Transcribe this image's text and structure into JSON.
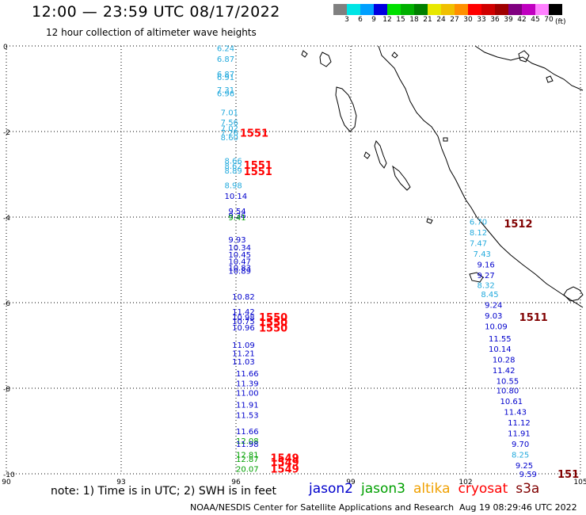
{
  "header": {
    "title": "12:00 — 23:59 UTC 08/17/2022",
    "subtitle": "12 hour collection of altimeter wave heights"
  },
  "legend": {
    "colors": [
      "#808080",
      "#00e5e5",
      "#00a0ff",
      "#0000e0",
      "#00e000",
      "#00b000",
      "#008000",
      "#e8e800",
      "#f0c000",
      "#ff9000",
      "#ff0000",
      "#d00000",
      "#a00000",
      "#800080",
      "#c000c0",
      "#ff80ff",
      "#000000"
    ],
    "labels": [
      "3",
      "6",
      "9",
      "12",
      "15",
      "18",
      "21",
      "24",
      "27",
      "30",
      "33",
      "36",
      "39",
      "42",
      "45",
      "70"
    ],
    "unit": "(ft)"
  },
  "map": {
    "lon_range": [
      90,
      105
    ],
    "lat_range": [
      -10,
      0
    ],
    "x_ticks": [
      "90",
      "93",
      "96",
      "99",
      "102",
      "105"
    ],
    "y_ticks": [
      "0",
      "-2",
      "-4",
      "-6",
      "-8",
      "-10"
    ],
    "grid": true,
    "colors": {
      "jason2": "#0000cc",
      "jason3": "#00a000",
      "altika": "#f0a000",
      "cryosat": "#ff0000",
      "s3a": "#800000",
      "light": "#22aadd",
      "coast": "#000000"
    }
  },
  "chart_data": {
    "type": "scatter",
    "title": "12:00 — 23:59 UTC 08/17/2022",
    "subtitle": "12 hour collection of altimeter wave heights",
    "xlabel": "",
    "ylabel": "",
    "xlim": [
      90,
      105
    ],
    "ylim": [
      -10,
      0
    ],
    "grid": true,
    "series": [
      {
        "name": "track-west",
        "points": [
          {
            "lon": 95.5,
            "lat": -0.05,
            "label": "6.24",
            "color": "light"
          },
          {
            "lon": 95.5,
            "lat": -0.3,
            "label": "6.87",
            "color": "light"
          },
          {
            "lon": 95.5,
            "lat": -0.65,
            "label": "6.87",
            "color": "light"
          },
          {
            "lon": 95.5,
            "lat": -0.72,
            "label": "6.91",
            "color": "light"
          },
          {
            "lon": 95.5,
            "lat": -1.02,
            "label": "7.31",
            "color": "light"
          },
          {
            "lon": 95.5,
            "lat": -1.1,
            "label": "6.96",
            "color": "light"
          },
          {
            "lon": 95.6,
            "lat": -1.55,
            "label": "7.01",
            "color": "light"
          },
          {
            "lon": 95.6,
            "lat": -1.78,
            "label": "7.56",
            "color": "light"
          },
          {
            "lon": 95.6,
            "lat": -1.92,
            "label": "7.02",
            "color": "light"
          },
          {
            "lon": 95.6,
            "lat": -2.02,
            "label": "7.26",
            "color": "light"
          },
          {
            "lon": 95.6,
            "lat": -2.13,
            "label": "8.60",
            "color": "light"
          },
          {
            "lon": 95.7,
            "lat": -2.68,
            "label": "8.66",
            "color": "light"
          },
          {
            "lon": 95.7,
            "lat": -2.8,
            "label": "8.62",
            "color": "light"
          },
          {
            "lon": 95.7,
            "lat": -2.91,
            "label": "8.89",
            "color": "light"
          },
          {
            "lon": 95.7,
            "lat": -3.25,
            "label": "8.98",
            "color": "light"
          },
          {
            "lon": 95.7,
            "lat": -3.5,
            "label": "10.14",
            "color": "jason2"
          },
          {
            "lon": 95.8,
            "lat": -3.85,
            "label": "9.54",
            "color": "jason2"
          },
          {
            "lon": 95.8,
            "lat": -3.95,
            "label": "9.36",
            "color": "jason2"
          },
          {
            "lon": 95.8,
            "lat": -4.0,
            "label": "9.41",
            "color": "jason3"
          },
          {
            "lon": 95.8,
            "lat": -4.52,
            "label": "9.93",
            "color": "jason2"
          },
          {
            "lon": 95.8,
            "lat": -4.7,
            "label": "10.34",
            "color": "jason2"
          },
          {
            "lon": 95.8,
            "lat": -4.87,
            "label": "10.45",
            "color": "jason2"
          },
          {
            "lon": 95.8,
            "lat": -5.03,
            "label": "10.47",
            "color": "jason2"
          },
          {
            "lon": 95.8,
            "lat": -5.18,
            "label": "10.83",
            "color": "jason2"
          },
          {
            "lon": 95.8,
            "lat": -5.25,
            "label": "10.89",
            "color": "jason2"
          },
          {
            "lon": 95.9,
            "lat": -5.85,
            "label": "10.82",
            "color": "jason2"
          },
          {
            "lon": 95.9,
            "lat": -6.2,
            "label": "11.42",
            "color": "jason2"
          },
          {
            "lon": 95.9,
            "lat": -6.33,
            "label": "10.98",
            "color": "jason2"
          },
          {
            "lon": 95.9,
            "lat": -6.43,
            "label": "10.75",
            "color": "jason2"
          },
          {
            "lon": 95.9,
            "lat": -6.57,
            "label": "10.96",
            "color": "jason2"
          },
          {
            "lon": 95.9,
            "lat": -6.98,
            "label": "11.09",
            "color": "jason2"
          },
          {
            "lon": 95.9,
            "lat": -7.18,
            "label": "11.21",
            "color": "jason2"
          },
          {
            "lon": 95.9,
            "lat": -7.37,
            "label": "11.03",
            "color": "jason2"
          },
          {
            "lon": 96.0,
            "lat": -7.65,
            "label": "11.66",
            "color": "jason2"
          },
          {
            "lon": 96.0,
            "lat": -7.88,
            "label": "11.39",
            "color": "jason2"
          },
          {
            "lon": 96.0,
            "lat": -8.1,
            "label": "11.00",
            "color": "jason2"
          },
          {
            "lon": 96.0,
            "lat": -8.38,
            "label": "11.91",
            "color": "jason2"
          },
          {
            "lon": 96.0,
            "lat": -8.62,
            "label": "11.53",
            "color": "jason2"
          },
          {
            "lon": 96.0,
            "lat": -9.0,
            "label": "11.66",
            "color": "jason2"
          },
          {
            "lon": 96.0,
            "lat": -9.22,
            "label": "12.08",
            "color": "jason3"
          },
          {
            "lon": 96.0,
            "lat": -9.3,
            "label": "11.98",
            "color": "jason2"
          },
          {
            "lon": 96.0,
            "lat": -9.55,
            "label": "12.81",
            "color": "jason3"
          },
          {
            "lon": 96.0,
            "lat": -9.65,
            "label": "12.87",
            "color": "jason3"
          },
          {
            "lon": 96.0,
            "lat": -9.88,
            "label": "20.07",
            "color": "jason3"
          }
        ]
      },
      {
        "name": "track-east",
        "points": [
          {
            "lon": 102.1,
            "lat": -4.1,
            "label": "6.70",
            "color": "light"
          },
          {
            "lon": 102.1,
            "lat": -4.35,
            "label": "8.12",
            "color": "light"
          },
          {
            "lon": 102.1,
            "lat": -4.6,
            "label": "7.47",
            "color": "light"
          },
          {
            "lon": 102.2,
            "lat": -4.85,
            "label": "7.43",
            "color": "light"
          },
          {
            "lon": 102.3,
            "lat": -5.1,
            "label": "9.16",
            "color": "jason2"
          },
          {
            "lon": 102.3,
            "lat": -5.35,
            "label": "9.27",
            "color": "jason2"
          },
          {
            "lon": 102.3,
            "lat": -5.58,
            "label": "8.32",
            "color": "light"
          },
          {
            "lon": 102.4,
            "lat": -5.8,
            "label": "8.45",
            "color": "light"
          },
          {
            "lon": 102.5,
            "lat": -6.05,
            "label": "9.24",
            "color": "jason2"
          },
          {
            "lon": 102.5,
            "lat": -6.3,
            "label": "9.03",
            "color": "jason2"
          },
          {
            "lon": 102.5,
            "lat": -6.55,
            "label": "10.09",
            "color": "jason2"
          },
          {
            "lon": 102.6,
            "lat": -6.83,
            "label": "11.55",
            "color": "jason2"
          },
          {
            "lon": 102.6,
            "lat": -7.07,
            "label": "10.14",
            "color": "jason2"
          },
          {
            "lon": 102.7,
            "lat": -7.32,
            "label": "10.28",
            "color": "jason2"
          },
          {
            "lon": 102.7,
            "lat": -7.57,
            "label": "11.42",
            "color": "jason2"
          },
          {
            "lon": 102.8,
            "lat": -7.82,
            "label": "10.55",
            "color": "jason2"
          },
          {
            "lon": 102.8,
            "lat": -8.05,
            "label": "10.80",
            "color": "jason2"
          },
          {
            "lon": 102.9,
            "lat": -8.3,
            "label": "10.61",
            "color": "jason2"
          },
          {
            "lon": 103.0,
            "lat": -8.55,
            "label": "11.43",
            "color": "jason2"
          },
          {
            "lon": 103.1,
            "lat": -8.8,
            "label": "11.12",
            "color": "jason2"
          },
          {
            "lon": 103.1,
            "lat": -9.05,
            "label": "11.91",
            "color": "jason2"
          },
          {
            "lon": 103.2,
            "lat": -9.3,
            "label": "9.70",
            "color": "jason2"
          },
          {
            "lon": 103.2,
            "lat": -9.55,
            "label": "8.25",
            "color": "light"
          },
          {
            "lon": 103.3,
            "lat": -9.8,
            "label": "9.25",
            "color": "jason2"
          },
          {
            "lon": 103.4,
            "lat": -10.0,
            "label": "9.59",
            "color": "jason2"
          }
        ]
      }
    ],
    "annotations": [
      {
        "lon": 96.1,
        "lat": -2.03,
        "label": "1551",
        "color": "cryosat"
      },
      {
        "lon": 96.2,
        "lat": -2.78,
        "label": "1551",
        "color": "cryosat"
      },
      {
        "lon": 96.2,
        "lat": -2.93,
        "label": "1551",
        "color": "cryosat"
      },
      {
        "lon": 103.0,
        "lat": -4.15,
        "label": "1512",
        "color": "s3a"
      },
      {
        "lon": 103.4,
        "lat": -6.33,
        "label": "1511",
        "color": "s3a"
      },
      {
        "lon": 96.6,
        "lat": -6.33,
        "label": "1550",
        "color": "cryosat"
      },
      {
        "lon": 96.6,
        "lat": -6.45,
        "label": "1550",
        "color": "cryosat"
      },
      {
        "lon": 96.6,
        "lat": -6.58,
        "label": "1550",
        "color": "cryosat"
      },
      {
        "lon": 96.9,
        "lat": -9.62,
        "label": "1549",
        "color": "cryosat"
      },
      {
        "lon": 96.9,
        "lat": -9.72,
        "label": "1549",
        "color": "cryosat"
      },
      {
        "lon": 96.9,
        "lat": -9.88,
        "label": "1549",
        "color": "cryosat"
      },
      {
        "lon": 104.4,
        "lat": -10.0,
        "label": "151",
        "color": "s3a"
      }
    ]
  },
  "footer": {
    "note": "note: 1) Time is in UTC; 2) SWH is in feet",
    "satellites": [
      {
        "label": "jason2",
        "color": "#0000cc"
      },
      {
        "label": "jason3",
        "color": "#00a000"
      },
      {
        "label": "altika",
        "color": "#f0a000"
      },
      {
        "label": "cryosat",
        "color": "#ff0000"
      },
      {
        "label": "s3a",
        "color": "#800000"
      }
    ],
    "credit": "NOAA/NESDIS Center for Satellite Applications and Research",
    "timestamp": "Aug 19 08:29:46 UTC 2022"
  }
}
